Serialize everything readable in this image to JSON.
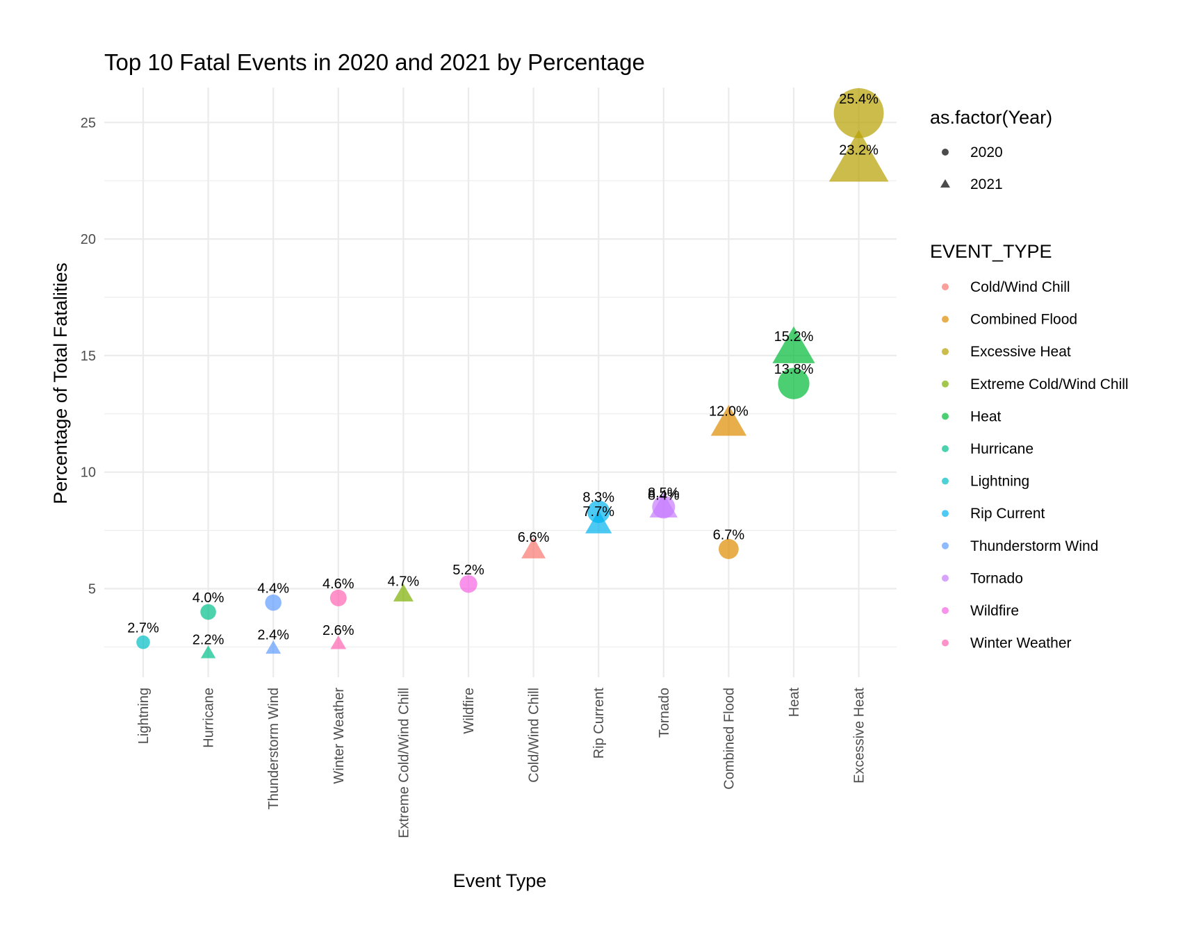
{
  "chart_data": {
    "type": "scatter",
    "title": "Top 10 Fatal Events in 2020 and 2021 by Percentage",
    "xlabel": "Event Type",
    "ylabel": "Percentage of Total Fatalities",
    "ylim": [
      1.2,
      26.5
    ],
    "y_ticks": [
      "5",
      "10",
      "15",
      "20",
      "25"
    ],
    "y_tick_values": [
      5,
      10,
      15,
      20,
      25
    ],
    "grid": true,
    "categories": [
      "Lightning",
      "Hurricane",
      "Thunderstorm Wind",
      "Winter Weather",
      "Extreme Cold/Wind Chill",
      "Wildfire",
      "Cold/Wind Chill",
      "Rip Current",
      "Tornado",
      "Combined Flood",
      "Heat",
      "Excessive Heat"
    ],
    "legend_placement": "right",
    "shape_legend": {
      "title": "as.factor(Year)",
      "entries": [
        {
          "label": "2020",
          "shape": "circle"
        },
        {
          "label": "2021",
          "shape": "triangle"
        }
      ]
    },
    "color_legend": {
      "title": "EVENT_TYPE",
      "entries": [
        {
          "label": "Cold/Wind Chill",
          "color": "#F8766D"
        },
        {
          "label": "Combined Flood",
          "color": "#DE8C00"
        },
        {
          "label": "Excessive Heat",
          "color": "#B79F00"
        },
        {
          "label": "Extreme Cold/Wind Chill",
          "color": "#7CAE00"
        },
        {
          "label": "Heat",
          "color": "#00BA38"
        },
        {
          "label": "Hurricane",
          "color": "#00C08B"
        },
        {
          "label": "Lightning",
          "color": "#00BFC4"
        },
        {
          "label": "Rip Current",
          "color": "#00B4F0"
        },
        {
          "label": "Thunderstorm Wind",
          "color": "#619CFF"
        },
        {
          "label": "Tornado",
          "color": "#C77CFF"
        },
        {
          "label": "Wildfire",
          "color": "#F564E3"
        },
        {
          "label": "Winter Weather",
          "color": "#FF64B0"
        }
      ]
    },
    "points": [
      {
        "x": "Lightning",
        "year": "2020",
        "y": 2.7,
        "label": "2.7%",
        "color": "#00BFC4"
      },
      {
        "x": "Hurricane",
        "year": "2020",
        "y": 4.0,
        "label": "4.0%",
        "color": "#00C08B"
      },
      {
        "x": "Hurricane",
        "year": "2021",
        "y": 2.2,
        "label": "2.2%",
        "color": "#00C08B"
      },
      {
        "x": "Thunderstorm Wind",
        "year": "2020",
        "y": 4.4,
        "label": "4.4%",
        "color": "#619CFF"
      },
      {
        "x": "Thunderstorm Wind",
        "year": "2021",
        "y": 2.4,
        "label": "2.4%",
        "color": "#619CFF"
      },
      {
        "x": "Winter Weather",
        "year": "2020",
        "y": 4.6,
        "label": "4.6%",
        "color": "#FF64B0"
      },
      {
        "x": "Winter Weather",
        "year": "2021",
        "y": 2.6,
        "label": "2.6%",
        "color": "#FF64B0"
      },
      {
        "x": "Extreme Cold/Wind Chill",
        "year": "2021",
        "y": 4.7,
        "label": "4.7%",
        "color": "#7CAE00"
      },
      {
        "x": "Wildfire",
        "year": "2020",
        "y": 5.2,
        "label": "5.2%",
        "color": "#F564E3"
      },
      {
        "x": "Cold/Wind Chill",
        "year": "2021",
        "y": 6.6,
        "label": "6.6%",
        "color": "#F8766D"
      },
      {
        "x": "Rip Current",
        "year": "2020",
        "y": 8.3,
        "label": "8.3%",
        "color": "#00B4F0"
      },
      {
        "x": "Rip Current",
        "year": "2021",
        "y": 7.7,
        "label": "7.7%",
        "color": "#00B4F0"
      },
      {
        "x": "Tornado",
        "year": "2020",
        "y": 8.5,
        "label": "8.5%",
        "color": "#C77CFF"
      },
      {
        "x": "Tornado",
        "year": "2021",
        "y": 8.4,
        "label": "8.4%",
        "color": "#C77CFF"
      },
      {
        "x": "Combined Flood",
        "year": "2020",
        "y": 6.7,
        "label": "6.7%",
        "color": "#DE8C00"
      },
      {
        "x": "Combined Flood",
        "year": "2021",
        "y": 12.0,
        "label": "12.0%",
        "color": "#DE8C00"
      },
      {
        "x": "Heat",
        "year": "2020",
        "y": 13.8,
        "label": "13.8%",
        "color": "#00BA38"
      },
      {
        "x": "Heat",
        "year": "2021",
        "y": 15.2,
        "label": "15.2%",
        "color": "#00BA38"
      },
      {
        "x": "Excessive Heat",
        "year": "2020",
        "y": 25.4,
        "label": "25.4%",
        "color": "#B79F00"
      },
      {
        "x": "Excessive Heat",
        "year": "2021",
        "y": 23.2,
        "label": "23.2%",
        "color": "#B79F00"
      }
    ]
  }
}
